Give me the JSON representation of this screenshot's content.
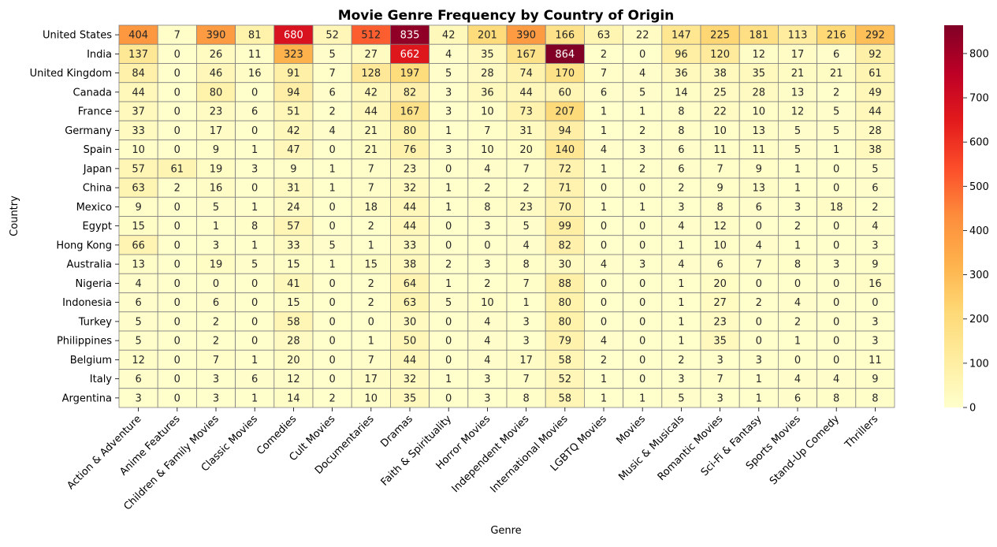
{
  "chart_data": {
    "type": "heatmap",
    "title": "Movie Genre Frequency by Country of Origin",
    "xlabel": "Genre",
    "ylabel": "Country",
    "colormap": "YlOrRd",
    "colorbar": {
      "min": 0,
      "max": 864,
      "ticks": [
        0,
        100,
        200,
        300,
        400,
        500,
        600,
        700,
        800
      ]
    },
    "colorscale": [
      "#ffffcc",
      "#ffeda0",
      "#fed976",
      "#feb24c",
      "#fd8d3c",
      "#fc4e2a",
      "#e31a1c",
      "#bd0026",
      "#800026"
    ],
    "grid_color": "#808080",
    "columns": [
      "Action & Adventure",
      "Anime Features",
      "Children & Family Movies",
      "Classic Movies",
      "Comedies",
      "Cult Movies",
      "Documentaries",
      "Dramas",
      "Faith & Spirituality",
      "Horror Movies",
      "Independent Movies",
      "International Movies",
      "LGBTQ Movies",
      "Movies",
      "Music & Musicals",
      "Romantic Movies",
      "Sci-Fi & Fantasy",
      "Sports Movies",
      "Stand-Up Comedy",
      "Thrillers"
    ],
    "rows": [
      "United States",
      "India",
      "United Kingdom",
      "Canada",
      "France",
      "Germany",
      "Spain",
      "Japan",
      "China",
      "Mexico",
      "Egypt",
      "Hong Kong",
      "Australia",
      "Nigeria",
      "Indonesia",
      "Turkey",
      "Philippines",
      "Belgium",
      "Italy",
      "Argentina"
    ],
    "values": [
      [
        404,
        7,
        390,
        81,
        680,
        52,
        512,
        835,
        42,
        201,
        390,
        166,
        63,
        22,
        147,
        225,
        181,
        113,
        216,
        292
      ],
      [
        137,
        0,
        26,
        11,
        323,
        5,
        27,
        662,
        4,
        35,
        167,
        864,
        2,
        0,
        96,
        120,
        12,
        17,
        6,
        92
      ],
      [
        84,
        0,
        46,
        16,
        91,
        7,
        128,
        197,
        5,
        28,
        74,
        170,
        7,
        4,
        36,
        38,
        35,
        21,
        21,
        61
      ],
      [
        44,
        0,
        80,
        0,
        94,
        6,
        42,
        82,
        3,
        36,
        44,
        60,
        6,
        5,
        14,
        25,
        28,
        13,
        2,
        49
      ],
      [
        37,
        0,
        23,
        6,
        51,
        2,
        44,
        167,
        3,
        10,
        73,
        207,
        1,
        1,
        8,
        22,
        10,
        12,
        5,
        44
      ],
      [
        33,
        0,
        17,
        0,
        42,
        4,
        21,
        80,
        1,
        7,
        31,
        94,
        1,
        2,
        8,
        10,
        13,
        5,
        5,
        28
      ],
      [
        10,
        0,
        9,
        1,
        47,
        0,
        21,
        76,
        3,
        10,
        20,
        140,
        4,
        3,
        6,
        11,
        11,
        5,
        1,
        38
      ],
      [
        57,
        61,
        19,
        3,
        9,
        1,
        7,
        23,
        0,
        4,
        7,
        72,
        1,
        2,
        6,
        7,
        9,
        1,
        0,
        5
      ],
      [
        63,
        2,
        16,
        0,
        31,
        1,
        7,
        32,
        1,
        2,
        2,
        71,
        0,
        0,
        2,
        9,
        13,
        1,
        0,
        6
      ],
      [
        9,
        0,
        5,
        1,
        24,
        0,
        18,
        44,
        1,
        8,
        23,
        70,
        1,
        1,
        3,
        8,
        6,
        3,
        18,
        2
      ],
      [
        15,
        0,
        1,
        8,
        57,
        0,
        2,
        44,
        0,
        3,
        5,
        99,
        0,
        0,
        4,
        12,
        0,
        2,
        0,
        4
      ],
      [
        66,
        0,
        3,
        1,
        33,
        5,
        1,
        33,
        0,
        0,
        4,
        82,
        0,
        0,
        1,
        10,
        4,
        1,
        0,
        3
      ],
      [
        13,
        0,
        19,
        5,
        15,
        1,
        15,
        38,
        2,
        3,
        8,
        30,
        4,
        3,
        4,
        6,
        7,
        8,
        3,
        9
      ],
      [
        4,
        0,
        0,
        0,
        41,
        0,
        2,
        64,
        1,
        2,
        7,
        88,
        0,
        0,
        1,
        20,
        0,
        0,
        0,
        16
      ],
      [
        6,
        0,
        6,
        0,
        15,
        0,
        2,
        63,
        5,
        10,
        1,
        80,
        0,
        0,
        1,
        27,
        2,
        4,
        0,
        0
      ],
      [
        5,
        0,
        2,
        0,
        58,
        0,
        0,
        30,
        0,
        4,
        3,
        80,
        0,
        0,
        1,
        23,
        0,
        2,
        0,
        3
      ],
      [
        5,
        0,
        2,
        0,
        28,
        0,
        1,
        50,
        0,
        4,
        3,
        79,
        4,
        0,
        1,
        35,
        0,
        1,
        0,
        3
      ],
      [
        12,
        0,
        7,
        1,
        20,
        0,
        7,
        44,
        0,
        4,
        17,
        58,
        2,
        0,
        2,
        3,
        3,
        0,
        0,
        11
      ],
      [
        6,
        0,
        3,
        6,
        12,
        0,
        17,
        32,
        1,
        3,
        7,
        52,
        1,
        0,
        3,
        7,
        1,
        4,
        4,
        9
      ],
      [
        3,
        0,
        3,
        1,
        14,
        2,
        10,
        35,
        0,
        3,
        8,
        58,
        1,
        1,
        5,
        3,
        1,
        6,
        8,
        8
      ]
    ]
  }
}
